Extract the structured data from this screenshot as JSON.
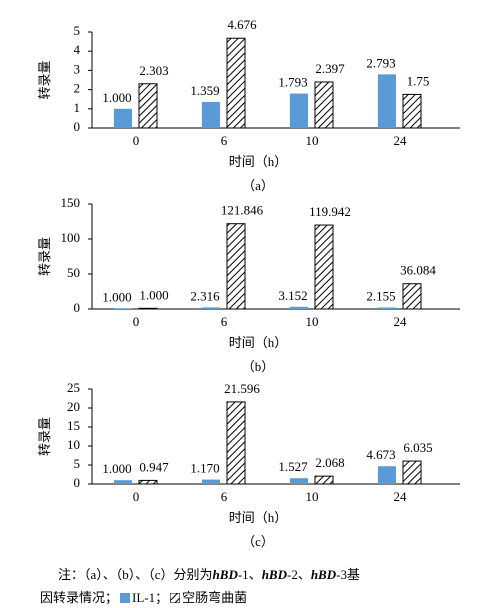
{
  "chart_data": [
    {
      "type": "bar",
      "caption": "（a）",
      "x_label": "时间（h）",
      "y_label": "转录量",
      "categories": [
        "0",
        "6",
        "10",
        "24"
      ],
      "ylim": [
        0,
        5
      ],
      "yticks": [
        0,
        1,
        2,
        3,
        4,
        5
      ],
      "series": [
        {
          "name": "IL-1",
          "color": "#5b9bd5",
          "values": [
            1.0,
            1.359,
            1.793,
            2.793
          ],
          "value_labels": [
            "1.000",
            "1.359",
            "1.793",
            "2.793"
          ]
        },
        {
          "name": "空肠弯曲菌",
          "color": "#000000",
          "pattern": "hatch",
          "values": [
            2.303,
            4.676,
            2.397,
            1.75
          ],
          "value_labels": [
            "2.303",
            "4.676",
            "2.397",
            "1.75"
          ]
        }
      ]
    },
    {
      "type": "bar",
      "caption": "（b）",
      "x_label": "时间（h）",
      "y_label": "转录量",
      "categories": [
        "0",
        "6",
        "10",
        "24"
      ],
      "ylim": [
        0,
        150
      ],
      "yticks": [
        0,
        50,
        100,
        150
      ],
      "series": [
        {
          "name": "IL-1",
          "color": "#5b9bd5",
          "values": [
            1.0,
            2.316,
            3.152,
            2.155
          ],
          "value_labels": [
            "1.000",
            "2.316",
            "3.152",
            "2.155"
          ]
        },
        {
          "name": "空肠弯曲菌",
          "color": "#000000",
          "pattern": "hatch",
          "values": [
            1.0,
            121.846,
            119.942,
            36.084
          ],
          "value_labels": [
            "1.000",
            "121.846",
            "119.942",
            "36.084"
          ]
        }
      ]
    },
    {
      "type": "bar",
      "caption": "（c）",
      "x_label": "时间（h）",
      "y_label": "转录量",
      "categories": [
        "0",
        "6",
        "10",
        "24"
      ],
      "ylim": [
        0,
        25
      ],
      "yticks": [
        0,
        5,
        10,
        15,
        20,
        25
      ],
      "series": [
        {
          "name": "IL-1",
          "color": "#5b9bd5",
          "values": [
            1.0,
            1.17,
            1.527,
            4.673
          ],
          "value_labels": [
            "1.000",
            "1.170",
            "1.527",
            "4.673"
          ]
        },
        {
          "name": "空肠弯曲菌",
          "color": "#000000",
          "pattern": "hatch",
          "values": [
            0.947,
            21.596,
            2.068,
            6.035
          ],
          "value_labels": [
            "0.947",
            "21.596",
            "2.068",
            "6.035"
          ]
        }
      ]
    }
  ],
  "note": {
    "parts1": [
      "注：（a）、（b）、（c）分别为",
      "hBD",
      "-1、",
      "hBD",
      "-2、",
      "hBD",
      "-3基"
    ],
    "lead2": "因转录情况；",
    "sep": "；"
  }
}
